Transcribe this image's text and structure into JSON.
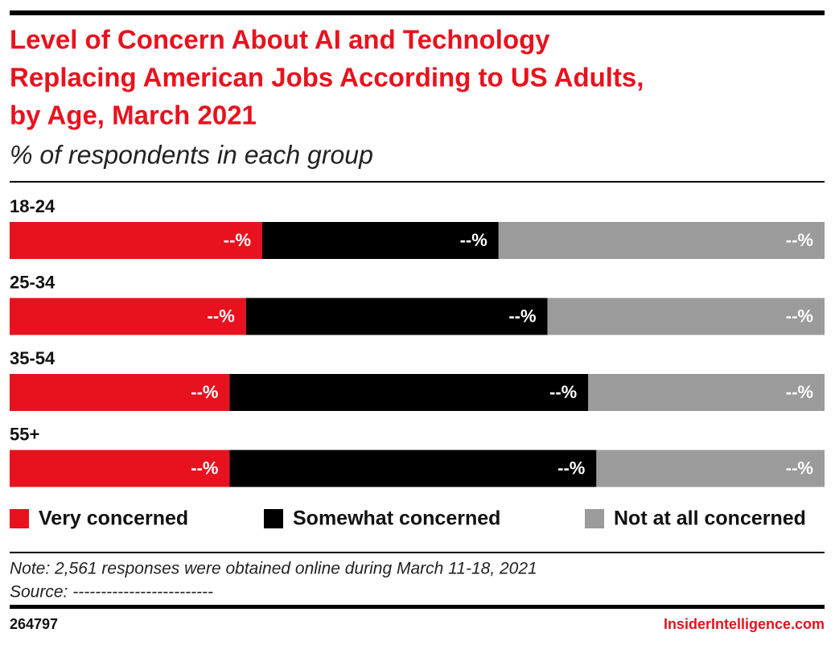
{
  "chart_data": {
    "type": "stacked-bar-horizontal",
    "title": [
      "Level of Concern About AI and Technology",
      "Replacing American Jobs According to US Adults,",
      "by Age, March 2021"
    ],
    "subtitle": "% of respondents in each group",
    "categories": [
      "18-24",
      "25-34",
      "35-54",
      "55+"
    ],
    "series": [
      {
        "name": "Very concerned",
        "color": "#e8121e",
        "values": [
          31,
          29,
          27,
          27
        ],
        "value_labels": [
          "--%",
          "--%",
          "--%",
          "--%"
        ]
      },
      {
        "name": "Somewhat concerned",
        "color": "#000000",
        "values": [
          29,
          37,
          44,
          45
        ],
        "value_labels": [
          "--%",
          "--%",
          "--%",
          "--%"
        ]
      },
      {
        "name": "Not at all concerned",
        "color": "#9b9b9b",
        "values": [
          40,
          34,
          29,
          28
        ],
        "value_labels": [
          "--%",
          "--%",
          "--%",
          "--%"
        ]
      }
    ],
    "note": "Note: 2,561 responses were obtained online during March 11-18, 2021",
    "source": "Source: -------------------------",
    "chart_id": "264797",
    "brand": "InsiderIntelligence.com"
  }
}
